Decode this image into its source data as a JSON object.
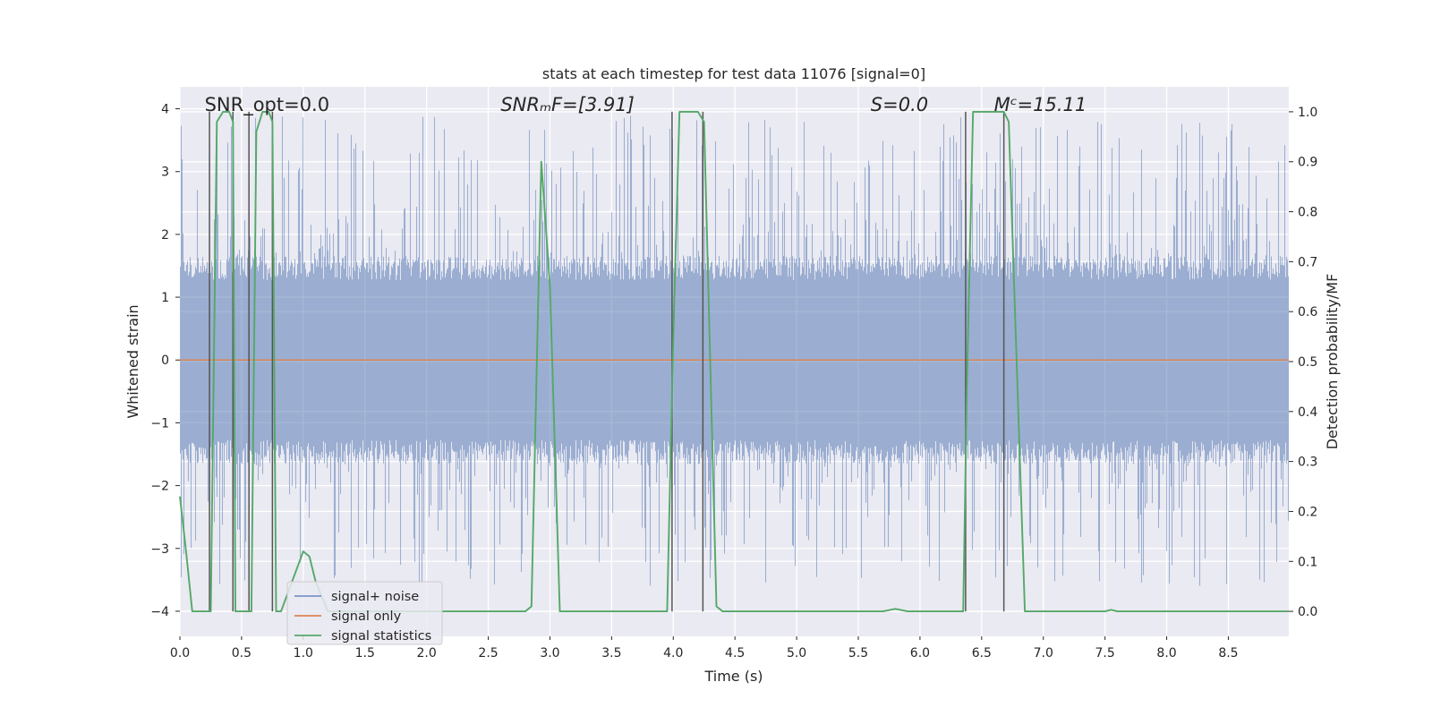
{
  "chart_data": {
    "type": "line",
    "title": "stats at each timestep for test data 11076 [signal=0]",
    "xlabel": "Time (s)",
    "ylabel_left": "Whitened strain",
    "ylabel_right": "Detection probability/MF",
    "xlim": [
      0.0,
      8.99
    ],
    "ylim_left": [
      -4.4,
      4.35
    ],
    "ylim_right": [
      -0.05,
      1.05
    ],
    "x_ticks": [
      0.0,
      0.5,
      1.0,
      1.5,
      2.0,
      2.5,
      3.0,
      3.5,
      4.0,
      4.5,
      5.0,
      5.5,
      6.0,
      6.5,
      7.0,
      7.5,
      8.0,
      8.5
    ],
    "x_tick_labels": [
      "0.0",
      "0.5",
      "1.0",
      "1.5",
      "2.0",
      "2.5",
      "3.0",
      "3.5",
      "4.0",
      "4.5",
      "5.0",
      "5.5",
      "6.0",
      "6.5",
      "7.0",
      "7.5",
      "8.0",
      "8.5"
    ],
    "y_left_ticks": [
      4,
      3,
      2,
      1,
      0,
      -1,
      -2,
      -3,
      -4
    ],
    "y_left_tick_labels": [
      "4",
      "3",
      "2",
      "1",
      "0",
      "−1",
      "−2",
      "−3",
      "−4"
    ],
    "y_right_ticks": [
      1.0,
      0.9,
      0.8,
      0.7,
      0.6,
      0.5,
      0.4,
      0.3,
      0.2,
      0.1,
      0.0
    ],
    "y_right_tick_labels": [
      "1.0",
      "0.9",
      "0.8",
      "0.7",
      "0.6",
      "0.5",
      "0.4",
      "0.3",
      "0.2",
      "0.1",
      "0.0"
    ],
    "grid": true,
    "legend_position": "lower-left",
    "annotations": [
      {
        "text": "SNR_opt=0.0",
        "x": 0.2
      },
      {
        "text": "SNRₘF=[3.91]",
        "x": 2.6
      },
      {
        "text": "S=0.0",
        "x": 5.6
      },
      {
        "text": "Mᶜ=15.11",
        "x": 6.6
      }
    ],
    "series": [
      {
        "name": "signal+ noise",
        "color": "#4c72b0",
        "axis": "left",
        "description": "whitened noise, band approx -1.6 to 1.6 with spikes up to about 3.9 and down to about -3.6",
        "envelope_core": 1.55,
        "envelope_peak": 3.9
      },
      {
        "name": "signal only",
        "color": "#dd8452",
        "axis": "left",
        "x": [
          0.0,
          8.99
        ],
        "y": [
          0.0,
          0.0
        ]
      },
      {
        "name": "signal statistics",
        "color": "#55a868",
        "axis": "right",
        "x": [
          0.0,
          0.05,
          0.1,
          0.25,
          0.3,
          0.35,
          0.4,
          0.43,
          0.45,
          0.5,
          0.55,
          0.58,
          0.62,
          0.67,
          0.72,
          0.75,
          0.78,
          0.82,
          1.0,
          1.05,
          1.1,
          1.2,
          2.8,
          2.85,
          2.93,
          3.0,
          3.08,
          3.95,
          4.0,
          4.05,
          4.2,
          4.25,
          4.35,
          4.4,
          5.7,
          5.8,
          5.9,
          6.35,
          6.38,
          6.43,
          6.68,
          6.72,
          6.85,
          6.95,
          7.5,
          7.55,
          7.6,
          8.99
        ],
        "y": [
          0.23,
          0.12,
          0.0,
          0.0,
          0.98,
          1.0,
          1.0,
          0.98,
          0.0,
          0.0,
          0.0,
          0.0,
          0.96,
          1.0,
          1.0,
          0.98,
          0.0,
          0.0,
          0.12,
          0.11,
          0.06,
          0.0,
          0.0,
          0.01,
          0.9,
          0.65,
          0.0,
          0.0,
          0.55,
          1.0,
          1.0,
          0.98,
          0.01,
          0.0,
          0.0,
          0.005,
          0.0,
          0.0,
          0.45,
          1.0,
          1.0,
          0.98,
          0.0,
          0.0,
          0.0,
          0.003,
          0.0,
          0.0
        ]
      }
    ],
    "event_markers": {
      "description": "vertical grey lines marking threshold crossings",
      "color": "#555555",
      "x": [
        0.24,
        0.43,
        0.56,
        0.75,
        3.99,
        4.24,
        6.37,
        6.68
      ]
    },
    "legend": [
      {
        "label": "signal+ noise",
        "color": "#4c72b0"
      },
      {
        "label": "signal only",
        "color": "#dd8452"
      },
      {
        "label": "signal statistics",
        "color": "#55a868"
      }
    ]
  }
}
